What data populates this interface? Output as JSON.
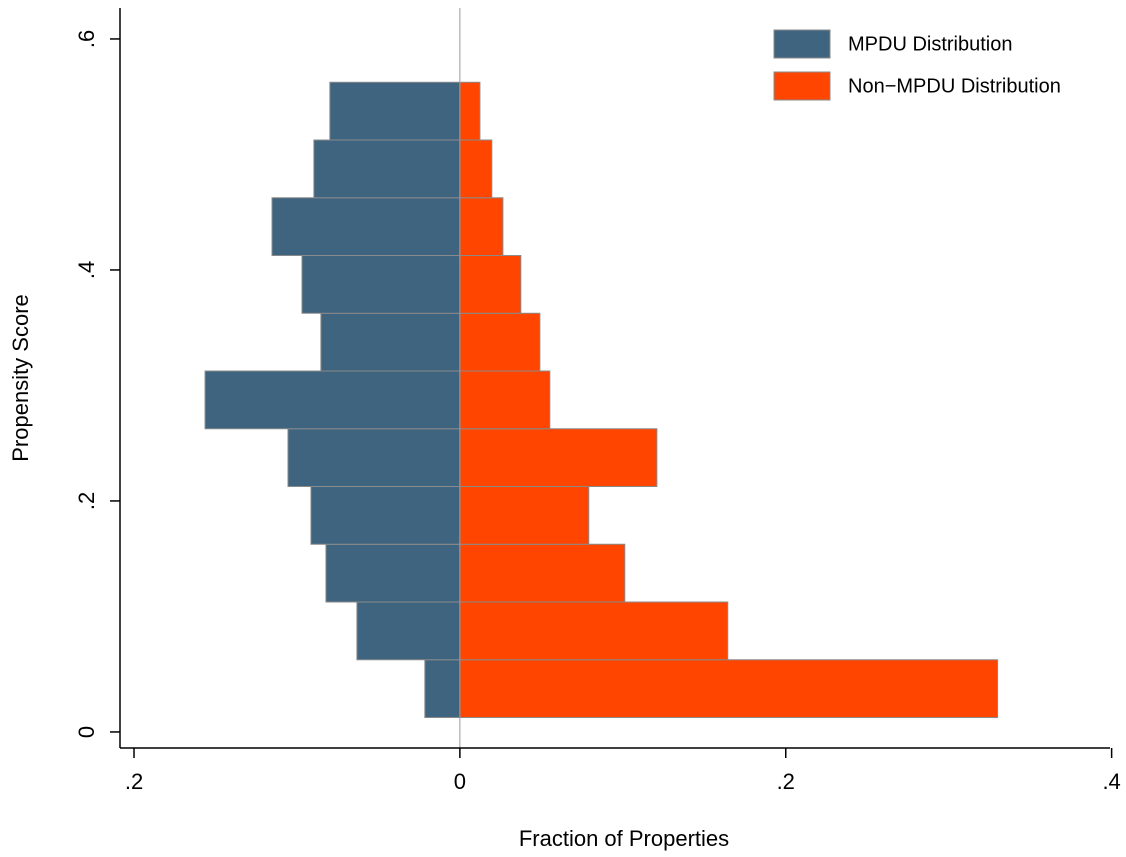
{
  "chart_data": {
    "type": "mirrored_histogram",
    "x_label": "Fraction of Properties",
    "y_label": "Propensity Score",
    "bins": [
      0.0125,
      0.0625,
      0.1125,
      0.1625,
      0.2125,
      0.2625,
      0.3125,
      0.3625,
      0.4125,
      0.4625,
      0.5125,
      0.5625
    ],
    "series": [
      {
        "name": "MPDU Distribution",
        "color": "#3e6480",
        "values": [
          -0.0215,
          -0.0632,
          -0.0822,
          -0.0914,
          -0.1055,
          -0.1564,
          -0.0853,
          -0.0969,
          -0.1153,
          -0.0896,
          -0.0798
        ]
      },
      {
        "name": "Non−MPDU Distribution",
        "color": "#ff4500",
        "values": [
          0.33,
          0.1644,
          0.1012,
          0.0791,
          0.1209,
          0.0552,
          0.0491,
          0.0374,
          0.0264,
          0.0196,
          0.0123
        ]
      }
    ],
    "xlim": [
      -0.2086,
      0.399
    ],
    "ylim": [
      -0.0139,
      0.6268
    ],
    "xticks": [
      {
        "value": -0.2,
        "label": ".2"
      },
      0,
      {
        "value": 0.2,
        "label": ".2"
      },
      {
        "value": 0.4,
        "label": ".4"
      }
    ],
    "yticks": [
      0,
      {
        "value": 0.2,
        "label": ".2"
      },
      {
        "value": 0.4,
        "label": ".4"
      },
      {
        "value": 0.6,
        "label": ".6"
      }
    ],
    "legend": "top-right",
    "grid": false
  }
}
